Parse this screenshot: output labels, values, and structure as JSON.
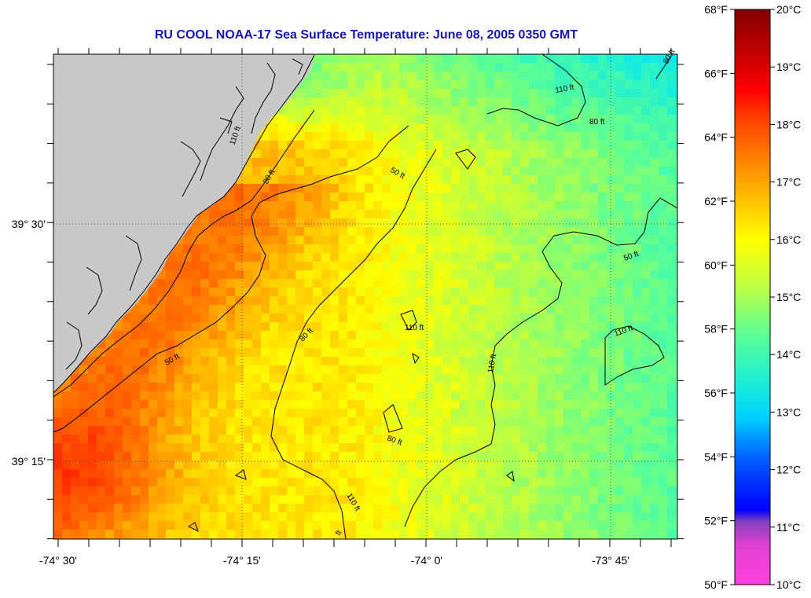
{
  "title": "RU COOL  NOAA-17  Sea Surface Temperature:  June 08, 2005 0350 GMT",
  "map": {
    "lon_labels": [
      "-74° 30'",
      "-74° 15'",
      "-74° 0'",
      "-73° 45'"
    ],
    "lat_labels": [
      "39° 30'",
      "39° 15'"
    ],
    "contour_labels": [
      "110 ft",
      "80 ft",
      "50 ft",
      "80 ft",
      "50 ft",
      "110 ft",
      "80 ft",
      "110 ft",
      "50 ft",
      "110 ft",
      "80 ft",
      "110 ft",
      "80 ft",
      "110 ft",
      "ft"
    ],
    "land_color": "#c8c8c8"
  },
  "colorbar": {
    "fahrenheit": [
      "68°F",
      "66°F",
      "64°F",
      "62°F",
      "60°F",
      "58°F",
      "56°F",
      "54°F",
      "52°F",
      "50°F"
    ],
    "celsius": [
      "20°C",
      "19°C",
      "18°C",
      "17°C",
      "16°C",
      "15°C",
      "14°C",
      "13°C",
      "12°C",
      "11°C",
      "10°C"
    ],
    "colors": [
      "#ff40d0",
      "#8040c0",
      "#0000ff",
      "#0080ff",
      "#00e0ff",
      "#40ffb0",
      "#a0ff60",
      "#ffff00",
      "#ffb000",
      "#ff6000",
      "#ff0000",
      "#b00000",
      "#800000"
    ]
  }
}
